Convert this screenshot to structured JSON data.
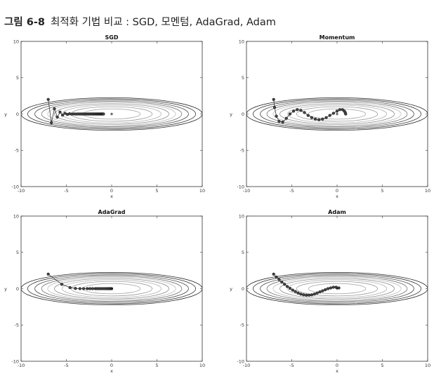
{
  "caption": {
    "number": "그림 6-8",
    "text": "최적화 기법 비교 : SGD, 모멘텀, AdaGrad, Adam"
  },
  "chart_data": [
    {
      "type": "line",
      "title": "SGD",
      "xlabel": "x",
      "ylabel": "y",
      "xlim": [
        -10,
        10
      ],
      "ylim": [
        -10,
        10
      ],
      "xticks": [
        "-10",
        "-5",
        "0",
        "5",
        "10"
      ],
      "yticks": [
        "10",
        "5",
        "0",
        "-5",
        "-10"
      ],
      "grid": false,
      "contour_function": "x^2/20 + y^2",
      "contour_levels": [
        0.5,
        1.0,
        1.5,
        2.0,
        2.5,
        3.0,
        3.6,
        4.3,
        5.0
      ],
      "series": [
        {
          "x": [
            -7.0,
            -6.65,
            -6.32,
            -6.0,
            -5.7,
            -5.42,
            -5.15,
            -4.89,
            -4.65,
            -4.41,
            -4.19,
            -3.98,
            -3.78,
            -3.59,
            -3.41,
            -3.24,
            -3.08,
            -2.93,
            -2.78,
            -2.64,
            -2.51,
            -2.38,
            -2.26,
            -2.15,
            -2.04,
            -1.94,
            -1.84,
            -1.75,
            -1.66,
            -1.58,
            -1.5,
            -1.43,
            -1.35,
            -1.29,
            -1.22,
            -1.16,
            -1.1,
            -1.05,
            -0.99,
            -0.94,
            -0.9
          ],
          "y": [
            2.0,
            -1.2,
            0.72,
            -0.43,
            0.26,
            -0.16,
            0.09,
            -0.06,
            0.03,
            -0.02,
            0.01,
            -0.01,
            0.0,
            0.0,
            0.0,
            0.0,
            0.0,
            0.0,
            0.0,
            0.0,
            0.0,
            0.0,
            0.0,
            0.0,
            0.0,
            0.0,
            0.0,
            0.0,
            0.0,
            0.0,
            0.0,
            0.0,
            0.0,
            0.0,
            0.0,
            0.0,
            0.0,
            0.0,
            0.0,
            0.0,
            0.0
          ]
        }
      ]
    },
    {
      "type": "line",
      "title": "Momentum",
      "xlabel": "x",
      "ylabel": "y",
      "xlim": [
        -10,
        10
      ],
      "ylim": [
        -10,
        10
      ],
      "xticks": [
        "-10",
        "-5",
        "0",
        "5",
        "10"
      ],
      "yticks": [
        "10",
        "5",
        "0",
        "-5",
        "-10"
      ],
      "grid": false,
      "contour_function": "x^2/20 + y^2",
      "contour_levels": [
        0.5,
        1.0,
        1.5,
        2.0,
        2.5,
        3.0,
        3.6,
        4.3,
        5.0
      ],
      "series": [
        {
          "x": [
            -7.0,
            -6.9,
            -6.7,
            -6.4,
            -6.0,
            -5.6,
            -5.2,
            -4.8,
            -4.4,
            -4.0,
            -3.6,
            -3.2,
            -2.8,
            -2.4,
            -2.0,
            -1.6,
            -1.2,
            -0.8,
            -0.4,
            0.0,
            0.3,
            0.6,
            0.8,
            0.9,
            0.95
          ],
          "y": [
            2.0,
            0.9,
            -0.3,
            -1.0,
            -1.1,
            -0.6,
            0.0,
            0.4,
            0.6,
            0.5,
            0.2,
            -0.2,
            -0.5,
            -0.7,
            -0.8,
            -0.7,
            -0.5,
            -0.2,
            0.1,
            0.4,
            0.6,
            0.6,
            0.4,
            0.2,
            0.0
          ]
        }
      ]
    },
    {
      "type": "line",
      "title": "AdaGrad",
      "xlabel": "x",
      "ylabel": "y",
      "xlim": [
        -10,
        10
      ],
      "ylim": [
        -10,
        10
      ],
      "xticks": [
        "-10",
        "-5",
        "0",
        "5",
        "10"
      ],
      "yticks": [
        "10",
        "5",
        "0",
        "-5",
        "-10"
      ],
      "grid": false,
      "contour_function": "x^2/20 + y^2",
      "contour_levels": [
        0.5,
        1.0,
        1.5,
        2.0,
        2.5,
        3.0,
        3.6,
        4.3,
        5.0
      ],
      "series": [
        {
          "x": [
            -7.0,
            -5.5,
            -4.6,
            -4.0,
            -3.5,
            -3.1,
            -2.7,
            -2.4,
            -2.1,
            -1.8,
            -1.6,
            -1.4,
            -1.2,
            -1.0,
            -0.8,
            -0.6,
            -0.45,
            -0.3,
            -0.2,
            -0.1,
            0.0
          ],
          "y": [
            2.0,
            0.6,
            0.15,
            0.03,
            0.0,
            0.0,
            0.0,
            0.0,
            0.0,
            0.0,
            0.0,
            0.0,
            0.0,
            0.0,
            0.0,
            0.0,
            0.0,
            0.0,
            0.0,
            0.0,
            0.0
          ]
        }
      ]
    },
    {
      "type": "line",
      "title": "Adam",
      "xlabel": "x",
      "ylabel": "y",
      "xlim": [
        -10,
        10
      ],
      "ylim": [
        -10,
        10
      ],
      "xticks": [
        "-10",
        "-5",
        "0",
        "5",
        "10"
      ],
      "yticks": [
        "10",
        "5",
        "0",
        "-5",
        "-10"
      ],
      "grid": false,
      "contour_function": "x^2/20 + y^2",
      "contour_levels": [
        0.5,
        1.0,
        1.5,
        2.0,
        2.5,
        3.0,
        3.6,
        4.3,
        5.0
      ],
      "series": [
        {
          "x": [
            -7.0,
            -6.7,
            -6.4,
            -6.1,
            -5.8,
            -5.5,
            -5.2,
            -4.9,
            -4.6,
            -4.3,
            -4.0,
            -3.7,
            -3.4,
            -3.1,
            -2.8,
            -2.5,
            -2.2,
            -1.9,
            -1.6,
            -1.3,
            -1.0,
            -0.7,
            -0.4,
            -0.1,
            0.2
          ],
          "y": [
            2.0,
            1.6,
            1.25,
            0.9,
            0.6,
            0.3,
            0.05,
            -0.2,
            -0.4,
            -0.6,
            -0.75,
            -0.85,
            -0.9,
            -0.9,
            -0.85,
            -0.75,
            -0.6,
            -0.45,
            -0.3,
            -0.15,
            0.0,
            0.1,
            0.2,
            0.2,
            0.1
          ]
        }
      ]
    }
  ]
}
